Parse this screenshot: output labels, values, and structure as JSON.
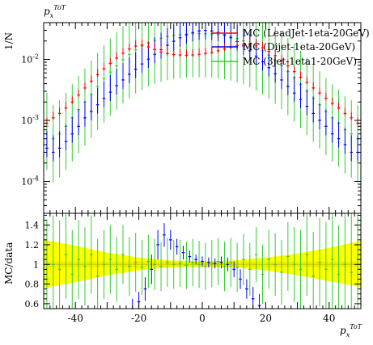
{
  "chart_data": [
    {
      "type": "scatter",
      "panel": "main",
      "top_label": "p_x^ToT",
      "ylabel": "1/N",
      "yscale": "log",
      "ylim": [
        3e-05,
        0.04
      ],
      "xlim": [
        -50,
        50
      ],
      "y_tick_labels": [
        "10^-4",
        "10^-3",
        "10^-2"
      ],
      "grid": false,
      "legend_position": "top-right",
      "series": [
        {
          "name": "MC (LeadJet-1eta-20GeV)",
          "color": "#ff0000",
          "x": [
            -49,
            -47,
            -45,
            -43,
            -41,
            -39,
            -37,
            -35,
            -33,
            -31,
            -29,
            -27,
            -25,
            -23,
            -21,
            -19,
            -17,
            -15,
            -13,
            -11,
            -9,
            -7,
            -5,
            -3,
            -1,
            1,
            3,
            5,
            7,
            9,
            11,
            13,
            15,
            17,
            19,
            21,
            23,
            25,
            27,
            29,
            31,
            33,
            35,
            37,
            39,
            41,
            43,
            45,
            47,
            49
          ],
          "y": [
            0.0009,
            0.0011,
            0.0013,
            0.0016,
            0.002,
            0.0026,
            0.0034,
            0.0044,
            0.0056,
            0.007,
            0.0086,
            0.0105,
            0.0126,
            0.0148,
            0.0165,
            0.0172,
            0.016,
            0.0145,
            0.0132,
            0.0124,
            0.012,
            0.0118,
            0.0117,
            0.0118,
            0.0121,
            0.0125,
            0.013,
            0.0138,
            0.0148,
            0.0158,
            0.0168,
            0.0174,
            0.0176,
            0.017,
            0.0155,
            0.0135,
            0.0115,
            0.0095,
            0.0078,
            0.0063,
            0.0051,
            0.0042,
            0.0034,
            0.0028,
            0.0023,
            0.0019,
            0.0016,
            0.0013,
            0.0011,
            0.0009
          ],
          "yerr_rel": 0.08
        },
        {
          "name": "MC (Dijet-1eta-20GeV)",
          "color": "#0000ff",
          "x": [
            -49,
            -47,
            -45,
            -43,
            -41,
            -39,
            -37,
            -35,
            -33,
            -31,
            -29,
            -27,
            -25,
            -23,
            -21,
            -19,
            -17,
            -15,
            -13,
            -11,
            -9,
            -7,
            -5,
            -3,
            -1,
            1,
            3,
            5,
            7,
            9,
            11,
            13,
            15,
            17,
            19,
            21,
            23,
            25,
            27,
            29,
            31,
            33,
            35,
            37,
            39,
            41,
            43,
            45,
            47,
            49
          ],
          "y": [
            0.00035,
            0.0003,
            0.00035,
            0.00045,
            0.0006,
            0.0008,
            0.0011,
            0.0014,
            0.0018,
            0.0023,
            0.0029,
            0.0037,
            0.0046,
            0.0057,
            0.0069,
            0.0084,
            0.0101,
            0.0121,
            0.0144,
            0.017,
            0.0198,
            0.0226,
            0.0252,
            0.0275,
            0.0292,
            0.0298,
            0.0292,
            0.0276,
            0.0253,
            0.0226,
            0.0196,
            0.0166,
            0.0138,
            0.0113,
            0.0091,
            0.0073,
            0.0058,
            0.0046,
            0.0036,
            0.0028,
            0.0022,
            0.0017,
            0.0013,
            0.001,
            0.0008,
            0.0006,
            0.0005,
            0.0004,
            0.0003,
            0.0003
          ],
          "yerr_rel": 0.3
        },
        {
          "name": "MC (3jet-1eta1-20GeV)",
          "color": "#32cd32",
          "x": [
            -49,
            -47,
            -45,
            -43,
            -41,
            -39,
            -37,
            -35,
            -33,
            -31,
            -29,
            -27,
            -25,
            -23,
            -21,
            -19,
            -17,
            -15,
            -13,
            -11,
            -9,
            -7,
            -5,
            -3,
            -1,
            1,
            3,
            5,
            7,
            9,
            11,
            13,
            15,
            17,
            19,
            21,
            23,
            25,
            27,
            29,
            31,
            33,
            35,
            37,
            39,
            41,
            43,
            45,
            47,
            49
          ],
          "y": [
            0.0008,
            0.0005,
            0.0006,
            0.0008,
            0.0011,
            0.0015,
            0.002,
            0.0027,
            0.0036,
            0.0048,
            0.0062,
            0.0078,
            0.0098,
            0.012,
            0.0143,
            0.0165,
            0.0186,
            0.0205,
            0.0222,
            0.0236,
            0.0247,
            0.0255,
            0.026,
            0.0263,
            0.0264,
            0.0263,
            0.026,
            0.0254,
            0.0246,
            0.0234,
            0.0219,
            0.0201,
            0.0181,
            0.016,
            0.0138,
            0.0117,
            0.0097,
            0.0079,
            0.0063,
            0.005,
            0.0039,
            0.003,
            0.0023,
            0.0018,
            0.0014,
            0.0011,
            0.0009,
            0.0007,
            0.0006,
            0.0005
          ],
          "yerr_rel": 0.85
        }
      ]
    },
    {
      "type": "scatter",
      "panel": "ratio",
      "ylabel": "MC/data",
      "xlabel": "p_x^ToT",
      "xlim": [
        -50,
        50
      ],
      "ylim": [
        0.55,
        1.52
      ],
      "x_tick_labels": [
        "-40",
        "-20",
        "0",
        "20",
        "40"
      ],
      "y_tick_labels": [
        "0.6",
        "0.8",
        "1",
        "1.2",
        "1.4"
      ],
      "reference_band": {
        "color_outer": "#ffff00",
        "color_inner": "#e5e500",
        "x": [
          -50,
          -40,
          -30,
          -20,
          -10,
          0,
          10,
          20,
          30,
          40,
          50
        ],
        "lower": [
          0.76,
          0.82,
          0.89,
          0.94,
          0.97,
          0.98,
          0.97,
          0.94,
          0.89,
          0.83,
          0.77
        ],
        "upper": [
          1.25,
          1.19,
          1.12,
          1.07,
          1.04,
          1.03,
          1.04,
          1.07,
          1.11,
          1.17,
          1.24
        ]
      },
      "series": [
        {
          "name": "MC (Dijet-1eta-20GeV)",
          "color": "#0000ff",
          "x": [
            -22,
            -20,
            -18,
            -16,
            -14,
            -12,
            -10,
            -8,
            -6,
            -4,
            -2,
            0,
            2,
            4,
            6,
            8,
            10,
            12,
            14,
            16,
            18
          ],
          "y": [
            0.55,
            0.62,
            0.75,
            0.95,
            1.2,
            1.3,
            1.25,
            1.18,
            1.12,
            1.08,
            1.05,
            1.03,
            1.02,
            1.01,
            1.02,
            1.0,
            0.95,
            0.85,
            0.75,
            0.65,
            0.58
          ],
          "yerr": [
            0.1,
            0.1,
            0.12,
            0.15,
            0.15,
            0.12,
            0.1,
            0.08,
            0.07,
            0.06,
            0.05,
            0.05,
            0.05,
            0.05,
            0.06,
            0.07,
            0.08,
            0.1,
            0.1,
            0.12,
            0.12
          ]
        },
        {
          "name": "MC (3jet-1eta1-20GeV)",
          "color": "#32cd32",
          "x": [
            -49,
            -47,
            -45,
            -43,
            -41,
            -39,
            -37,
            -35,
            -33,
            -31,
            -29,
            -27,
            -25,
            -23,
            -21,
            -19,
            -17,
            -15,
            -13,
            -11,
            -9,
            -7,
            -5,
            -3,
            -1,
            1,
            3,
            5,
            7,
            9,
            11,
            13,
            15,
            17,
            19,
            21,
            23,
            25,
            27,
            29,
            31,
            33,
            35,
            37,
            39,
            41,
            43,
            45,
            47,
            49
          ],
          "y": [
            0.85,
            1.0,
            0.95,
            1.1,
            0.9,
            1.05,
            0.98,
            1.1,
            0.88,
            1.0,
            1.05,
            0.95,
            1.1,
            0.98,
            1.02,
            0.97,
            1.03,
            1.0,
            0.98,
            1.02,
            1.0,
            1.01,
            0.99,
            1.02,
            1.0,
            0.98,
            1.01,
            1.03,
            0.98,
            1.02,
            0.97,
            1.05,
            0.95,
            1.1,
            0.9,
            1.05,
            1.0,
            0.92,
            1.08,
            1.0,
            0.95,
            1.1,
            0.88,
            1.02,
            0.95,
            1.05,
            0.9,
            1.0,
            0.92,
            1.05
          ],
          "yerr": [
            0.6,
            0.5,
            0.5,
            0.45,
            0.45,
            0.4,
            0.4,
            0.4,
            0.38,
            0.35,
            0.35,
            0.33,
            0.3,
            0.3,
            0.3,
            0.28,
            0.27,
            0.26,
            0.25,
            0.25,
            0.25,
            0.24,
            0.24,
            0.24,
            0.24,
            0.24,
            0.24,
            0.24,
            0.25,
            0.25,
            0.25,
            0.26,
            0.27,
            0.28,
            0.3,
            0.3,
            0.32,
            0.33,
            0.35,
            0.38,
            0.4,
            0.42,
            0.45,
            0.45,
            0.48,
            0.5,
            0.5,
            0.55,
            0.6,
            0.6
          ]
        }
      ]
    }
  ]
}
